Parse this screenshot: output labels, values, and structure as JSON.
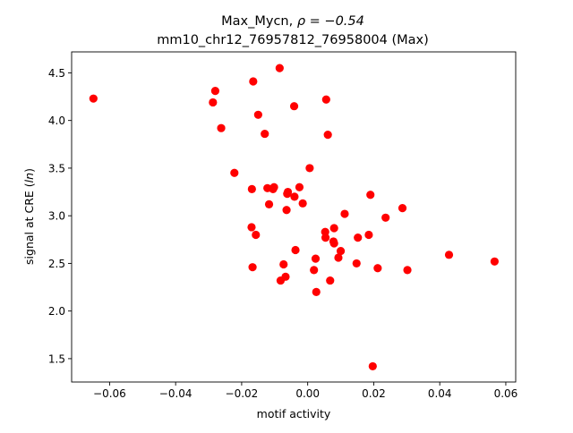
{
  "chart_data": {
    "type": "scatter",
    "title_line1": "Max_Mycn, ",
    "title_rho": "ρ = −0.54",
    "title_line2": "mm10_chr12_76957812_76958004 (Max)",
    "xlabel": "motif activity",
    "ylabel_prefix": "signal at CRE (",
    "ylabel_italic": "ln",
    "ylabel_suffix": ")",
    "xlim": [
      -0.0715,
      0.063
    ],
    "ylim": [
      1.255,
      4.72
    ],
    "xticks": [
      -0.06,
      -0.04,
      -0.02,
      0.0,
      0.02,
      0.04,
      0.06
    ],
    "xtick_labels": [
      "−0.06",
      "−0.04",
      "−0.02",
      "0.00",
      "0.02",
      "0.04",
      "0.06"
    ],
    "yticks": [
      1.5,
      2.0,
      2.5,
      3.0,
      3.5,
      4.0,
      4.5
    ],
    "ytick_labels": [
      "1.5",
      "2.0",
      "2.5",
      "3.0",
      "3.5",
      "4.0",
      "4.5"
    ],
    "marker_color": "#ff0000",
    "grid": false,
    "legend": "none",
    "points": [
      {
        "x": -0.0649,
        "y": 4.23
      },
      {
        "x": -0.028,
        "y": 4.31
      },
      {
        "x": -0.0287,
        "y": 4.19
      },
      {
        "x": -0.0262,
        "y": 3.92
      },
      {
        "x": -0.0165,
        "y": 4.41
      },
      {
        "x": -0.0085,
        "y": 4.55
      },
      {
        "x": -0.015,
        "y": 4.06
      },
      {
        "x": -0.0041,
        "y": 4.15
      },
      {
        "x": 0.0056,
        "y": 4.22
      },
      {
        "x": -0.013,
        "y": 3.86
      },
      {
        "x": 0.0061,
        "y": 3.85
      },
      {
        "x": -0.0222,
        "y": 3.45
      },
      {
        "x": 0.0006,
        "y": 3.5
      },
      {
        "x": -0.0169,
        "y": 3.28
      },
      {
        "x": -0.0122,
        "y": 3.29
      },
      {
        "x": -0.0105,
        "y": 3.28
      },
      {
        "x": -0.0102,
        "y": 3.3
      },
      {
        "x": -0.0062,
        "y": 3.23
      },
      {
        "x": -0.006,
        "y": 3.25
      },
      {
        "x": -0.004,
        "y": 3.2
      },
      {
        "x": -0.0025,
        "y": 3.3
      },
      {
        "x": -0.0117,
        "y": 3.12
      },
      {
        "x": -0.0015,
        "y": 3.13
      },
      {
        "x": -0.0064,
        "y": 3.06
      },
      {
        "x": 0.019,
        "y": 3.22
      },
      {
        "x": 0.0287,
        "y": 3.08
      },
      {
        "x": 0.0112,
        "y": 3.02
      },
      {
        "x": 0.0236,
        "y": 2.98
      },
      {
        "x": -0.017,
        "y": 2.88
      },
      {
        "x": -0.0157,
        "y": 2.8
      },
      {
        "x": 0.008,
        "y": 2.87
      },
      {
        "x": 0.0053,
        "y": 2.83
      },
      {
        "x": 0.0054,
        "y": 2.77
      },
      {
        "x": 0.0078,
        "y": 2.73
      },
      {
        "x": 0.008,
        "y": 2.71
      },
      {
        "x": 0.0185,
        "y": 2.8
      },
      {
        "x": 0.0152,
        "y": 2.77
      },
      {
        "x": -0.0037,
        "y": 2.64
      },
      {
        "x": 0.01,
        "y": 2.63
      },
      {
        "x": 0.0093,
        "y": 2.56
      },
      {
        "x": 0.0024,
        "y": 2.55
      },
      {
        "x": -0.0167,
        "y": 2.46
      },
      {
        "x": -0.0073,
        "y": 2.49
      },
      {
        "x": 0.0019,
        "y": 2.43
      },
      {
        "x": 0.0148,
        "y": 2.5
      },
      {
        "x": 0.0212,
        "y": 2.45
      },
      {
        "x": 0.0302,
        "y": 2.43
      },
      {
        "x": 0.0428,
        "y": 2.59
      },
      {
        "x": 0.0566,
        "y": 2.52
      },
      {
        "x": -0.0067,
        "y": 2.36
      },
      {
        "x": -0.0082,
        "y": 2.32
      },
      {
        "x": 0.0068,
        "y": 2.32
      },
      {
        "x": 0.0026,
        "y": 2.2
      },
      {
        "x": 0.0197,
        "y": 1.42
      }
    ]
  }
}
